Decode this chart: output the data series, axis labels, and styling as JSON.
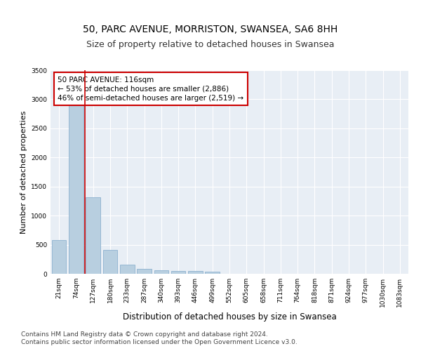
{
  "title": "50, PARC AVENUE, MORRISTON, SWANSEA, SA6 8HH",
  "subtitle": "Size of property relative to detached houses in Swansea",
  "xlabel": "Distribution of detached houses by size in Swansea",
  "ylabel": "Number of detached properties",
  "categories": [
    "21sqm",
    "74sqm",
    "127sqm",
    "180sqm",
    "233sqm",
    "287sqm",
    "340sqm",
    "393sqm",
    "446sqm",
    "499sqm",
    "552sqm",
    "605sqm",
    "658sqm",
    "711sqm",
    "764sqm",
    "818sqm",
    "871sqm",
    "924sqm",
    "977sqm",
    "1030sqm",
    "1083sqm"
  ],
  "values": [
    575,
    2900,
    1310,
    410,
    155,
    80,
    60,
    50,
    45,
    40,
    5,
    4,
    3,
    2,
    2,
    2,
    2,
    1,
    1,
    1,
    1
  ],
  "bar_color": "#b8cfe0",
  "bar_edge_color": "#7fa8c9",
  "bar_edge_width": 0.5,
  "vline_x": 1.53,
  "vline_color": "#cc0000",
  "annotation_line1": "50 PARC AVENUE: 116sqm",
  "annotation_line2": "← 53% of detached houses are smaller (2,886)",
  "annotation_line3": "46% of semi-detached houses are larger (2,519) →",
  "annotation_box_color": "#ffffff",
  "annotation_box_edge_color": "#cc0000",
  "ylim": [
    0,
    3500
  ],
  "yticks": [
    0,
    500,
    1000,
    1500,
    2000,
    2500,
    3000,
    3500
  ],
  "bg_color": "#e8eef5",
  "grid_color": "#ffffff",
  "footer_line1": "Contains HM Land Registry data © Crown copyright and database right 2024.",
  "footer_line2": "Contains public sector information licensed under the Open Government Licence v3.0.",
  "title_fontsize": 10,
  "subtitle_fontsize": 9,
  "xlabel_fontsize": 8.5,
  "ylabel_fontsize": 8,
  "tick_fontsize": 6.5,
  "annotation_fontsize": 7.5,
  "footer_fontsize": 6.5
}
